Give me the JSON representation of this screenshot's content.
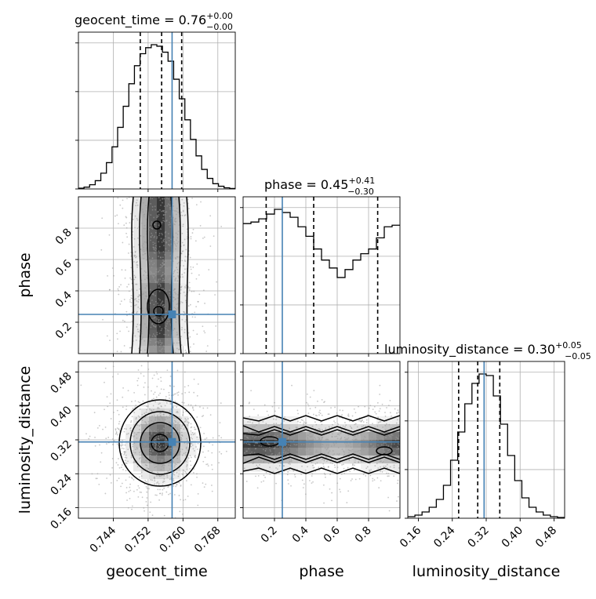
{
  "chart_data": {
    "type": "corner",
    "params": [
      "geocent_time",
      "phase",
      "luminosity_distance"
    ],
    "truths": [
      0.7575,
      0.25,
      0.315
    ],
    "ranges": [
      [
        0.736,
        0.772
      ],
      [
        0.0,
        1.0
      ],
      [
        0.135,
        0.505
      ]
    ],
    "titles": [
      {
        "label": "geocent_time = 0.76",
        "plus": "+0.00",
        "minus": "−0.00"
      },
      {
        "label": "phase = 0.45",
        "plus": "+0.41",
        "minus": "−0.30"
      },
      {
        "label": "luminosity_distance = 0.30",
        "plus": "+0.05",
        "minus": "−0.05"
      }
    ],
    "xlabels": [
      "geocent_time",
      "phase",
      "luminosity_distance"
    ],
    "ylabels": [
      "phase",
      "luminosity_distance"
    ],
    "ticks": [
      {
        "values": [
          0.744,
          0.752,
          0.76,
          0.768
        ],
        "labels": [
          "0.744",
          "0.752",
          "0.760",
          "0.768"
        ]
      },
      {
        "values": [
          0.2,
          0.4,
          0.6,
          0.8
        ],
        "labels": [
          "0.2",
          "0.4",
          "0.6",
          "0.8"
        ]
      },
      {
        "values": [
          0.16,
          0.24,
          0.32,
          0.4,
          0.48
        ],
        "labels": [
          "0.16",
          "0.24",
          "0.32",
          "0.40",
          "0.48"
        ]
      }
    ],
    "quantiles": [
      [
        0.7502,
        0.7551,
        0.7597
      ],
      [
        0.147,
        0.45,
        0.858
      ],
      [
        0.255,
        0.3,
        0.352
      ]
    ],
    "histograms": [
      {
        "edges": [
          0.736,
          0.772
        ],
        "counts": [
          0.5,
          1.2,
          2.8,
          5.5,
          10.5,
          17.5,
          28,
          41,
          55,
          70,
          82,
          90,
          94,
          96,
          95,
          91,
          85,
          73,
          60,
          46,
          33,
          22,
          13,
          7,
          3.5,
          1.8,
          0.8,
          0.3
        ]
      },
      {
        "edges": [
          0.0,
          1.0
        ],
        "counts": [
          82,
          83,
          85,
          88,
          91,
          89,
          86,
          80,
          74,
          66,
          59,
          54,
          48,
          53,
          59,
          63,
          66,
          73,
          80,
          81
        ]
      },
      {
        "edges": [
          0.135,
          0.505
        ],
        "counts": [
          1,
          2,
          4,
          7,
          12,
          21,
          37,
          55,
          73,
          86,
          92,
          91,
          78,
          60,
          40,
          24,
          13,
          7,
          4,
          2,
          1,
          0.5
        ]
      }
    ],
    "grid": true
  }
}
